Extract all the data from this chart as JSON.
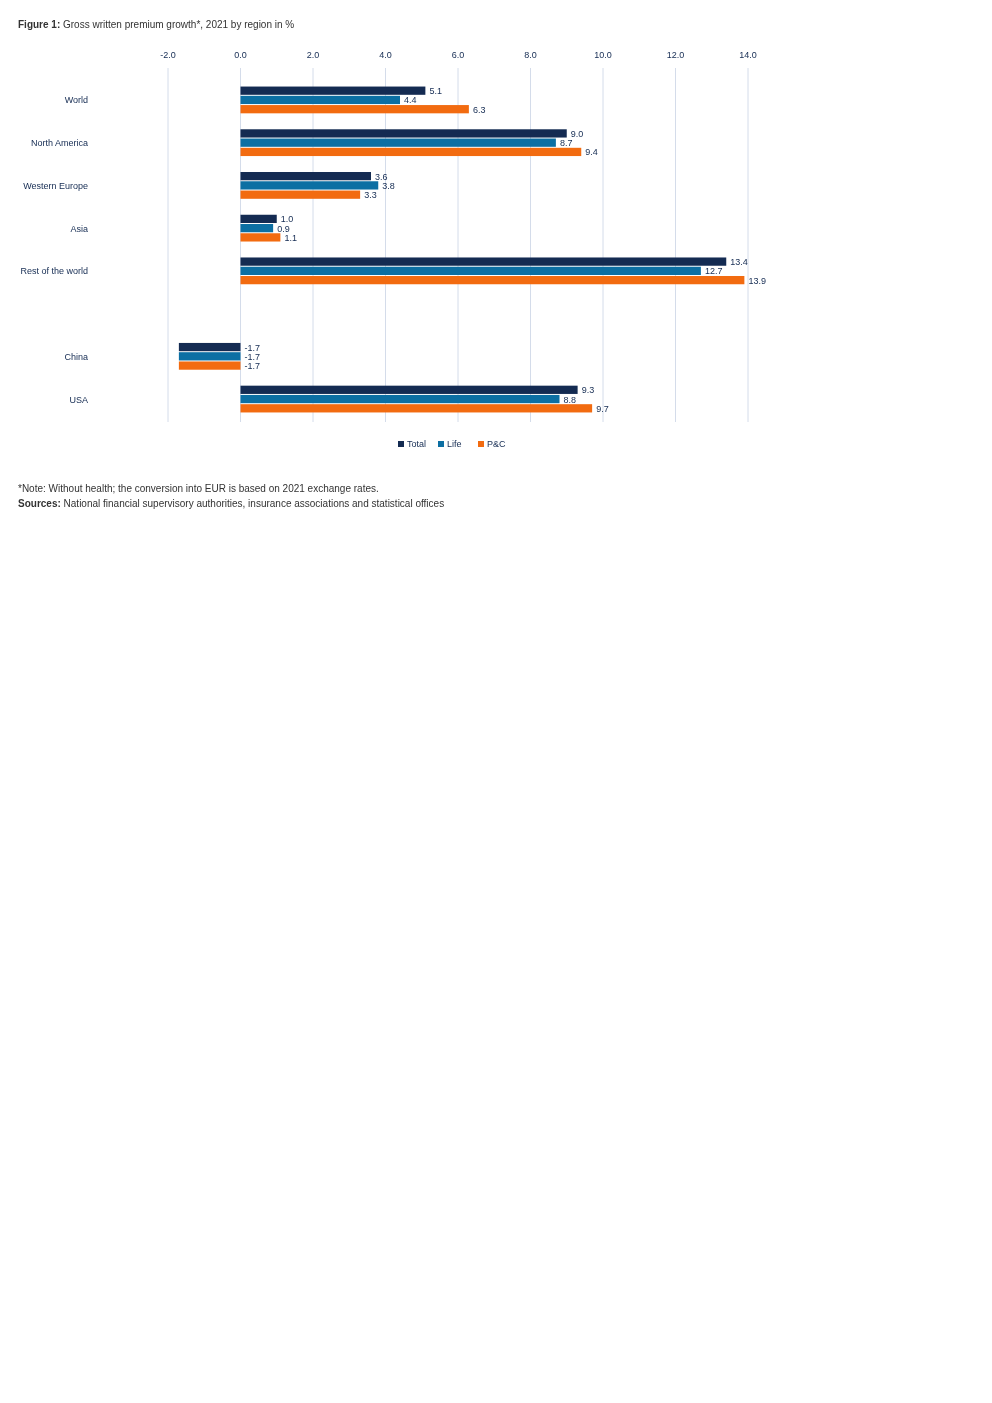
{
  "chart_data": {
    "type": "bar",
    "orientation": "horizontal",
    "title": "Figure 1: Gross written premium growth*, 2021 by region in %",
    "categories": [
      "World",
      "North America",
      "Western Europe",
      "Asia",
      "Rest of the world",
      null,
      "China",
      "USA"
    ],
    "series": [
      {
        "name": "Total",
        "color": "#142b52",
        "values": [
          5.1,
          9.0,
          3.6,
          1.0,
          13.4,
          null,
          -1.7,
          9.3
        ],
        "value_labels": [
          "5.1",
          "9.0",
          "3.6",
          "1.0",
          "13.4",
          null,
          "-1.7",
          "9.3"
        ]
      },
      {
        "name": "Life",
        "color": "#0c6fa3",
        "values": [
          4.4,
          8.7,
          3.8,
          0.9,
          12.7,
          null,
          -1.7,
          8.8
        ],
        "value_labels": [
          "4.4",
          "8.7",
          "3.8",
          "0.9",
          "12.7",
          null,
          "-1.7",
          "8.8"
        ]
      },
      {
        "name": "P&C",
        "color": "#f26b10",
        "values": [
          6.3,
          9.4,
          3.3,
          1.1,
          13.9,
          null,
          -1.7,
          9.7
        ],
        "value_labels": [
          "6.3",
          "9.4",
          "3.3",
          "1.1",
          "13.9",
          null,
          "-1.7",
          "9.7"
        ]
      }
    ],
    "xlim": [
      -2,
      14
    ],
    "xticks": [
      {
        "value": -2,
        "label": "-2.0"
      },
      {
        "value": 0,
        "label": "0.0"
      },
      {
        "value": 2,
        "label": "2.0"
      },
      {
        "value": 4,
        "label": "4.0"
      },
      {
        "value": 6,
        "label": "6.0"
      },
      {
        "value": 8,
        "label": "8.0"
      },
      {
        "value": 10,
        "label": "10.0"
      },
      {
        "value": 12,
        "label": "12.0"
      },
      {
        "value": 14,
        "label": "14.0"
      }
    ],
    "grid": "x",
    "legend": "bottom",
    "annotations": [
      "*Note: Without health; the conversion into EUR is based on 2021 exchange rates.",
      "Sources: National financial supervisory authorities, insurance associations and statistical offices"
    ]
  }
}
